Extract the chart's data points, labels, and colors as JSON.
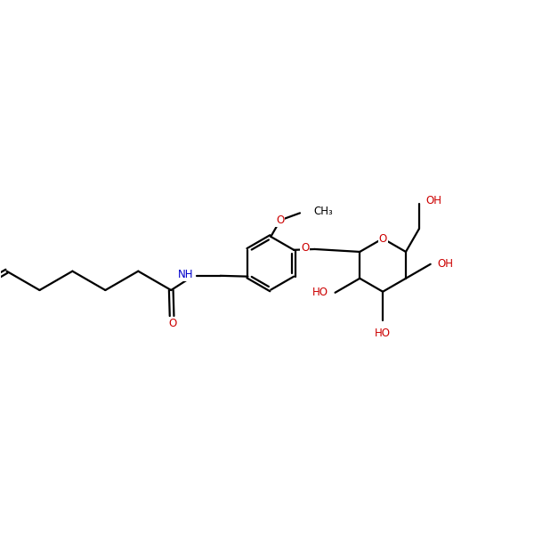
{
  "bg_color": "#ffffff",
  "bond_color": "#000000",
  "oxygen_color": "#cc0000",
  "nitrogen_color": "#0000cc",
  "lw": 1.6,
  "fs": 8.5,
  "figsize": [
    6.0,
    6.0
  ],
  "dpi": 100,
  "xlim": [
    -1.5,
    12.5
  ],
  "ylim": [
    -3.5,
    3.5
  ]
}
